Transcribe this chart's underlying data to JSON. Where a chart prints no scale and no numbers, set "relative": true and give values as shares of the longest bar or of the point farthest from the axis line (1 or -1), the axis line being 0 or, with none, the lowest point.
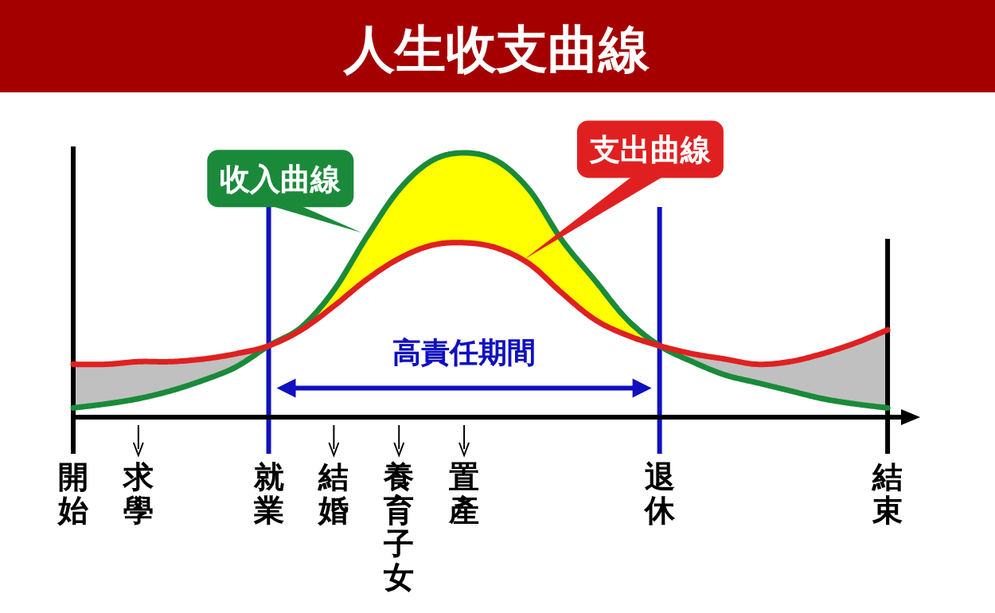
{
  "chart_data": {
    "type": "line",
    "title": "人生收支曲線",
    "relative": true,
    "marker": "none",
    "line_style": "solid",
    "categories": [
      "開始",
      null,
      "求學",
      null,
      null,
      null,
      "就業",
      null,
      "結婚",
      null,
      "養育子女",
      null,
      "置產",
      null,
      null,
      null,
      null,
      null,
      "退休",
      null,
      null,
      null,
      null,
      null,
      null,
      "結束",
      null
    ],
    "series": [
      {
        "name": "收入曲線",
        "color": "#1a8a3a",
        "values": [
          0.035,
          0.05,
          0.07,
          0.1,
          0.14,
          0.19,
          0.27,
          0.34,
          0.48,
          0.68,
          0.86,
          0.97,
          1,
          0.97,
          0.86,
          0.67,
          0.52,
          0.37,
          0.27,
          0.21,
          0.16,
          0.13,
          0.1,
          0.07,
          0.05,
          0.035,
          null
        ],
        "lower": [
          null,
          null,
          null,
          null,
          null,
          null,
          0.27,
          0.33,
          0.42,
          0.52,
          0.6,
          0.65,
          0.66,
          0.64,
          0.58,
          0.47,
          0.37,
          0.31,
          0.27,
          null,
          null,
          null,
          null,
          null,
          null,
          null,
          null
        ],
        "upper": [
          null,
          null,
          null,
          null,
          null,
          null,
          0.27,
          0.34,
          0.48,
          0.68,
          0.86,
          0.97,
          1,
          0.97,
          0.86,
          0.67,
          0.52,
          0.37,
          0.27,
          null,
          null,
          null,
          null,
          null,
          null,
          null,
          null
        ]
      },
      {
        "name": "支出曲線",
        "color": "#e02020",
        "values": [
          0.2,
          0.2,
          0.21,
          0.21,
          0.22,
          0.24,
          0.27,
          0.33,
          0.42,
          0.52,
          0.6,
          0.65,
          0.66,
          0.64,
          0.58,
          0.47,
          0.37,
          0.31,
          0.27,
          0.24,
          0.22,
          0.2,
          0.21,
          0.24,
          0.28,
          0.33,
          null
        ],
        "lower": [
          0.035,
          0.05,
          0.07,
          0.1,
          0.14,
          0.19,
          0.27,
          null,
          null,
          null,
          null,
          null,
          null,
          null,
          null,
          null,
          null,
          null,
          0.27,
          0.21,
          0.16,
          0.13,
          0.1,
          0.07,
          0.05,
          0.035,
          null
        ],
        "upper": [
          0.2,
          0.2,
          0.21,
          0.21,
          0.22,
          0.24,
          0.27,
          null,
          null,
          null,
          null,
          null,
          null,
          null,
          null,
          null,
          null,
          null,
          0.27,
          0.24,
          0.22,
          0.2,
          0.21,
          0.24,
          0.28,
          0.33,
          null
        ]
      }
    ],
    "ref_lines": [
      {
        "axis": "x",
        "value": "就業",
        "color": "#1010c0"
      },
      {
        "axis": "x",
        "value": "退休",
        "color": "#1010c0"
      },
      {
        "axis": "x",
        "value": "結束",
        "color": "#000000"
      }
    ],
    "annotations": [
      "高責任期間"
    ]
  }
}
